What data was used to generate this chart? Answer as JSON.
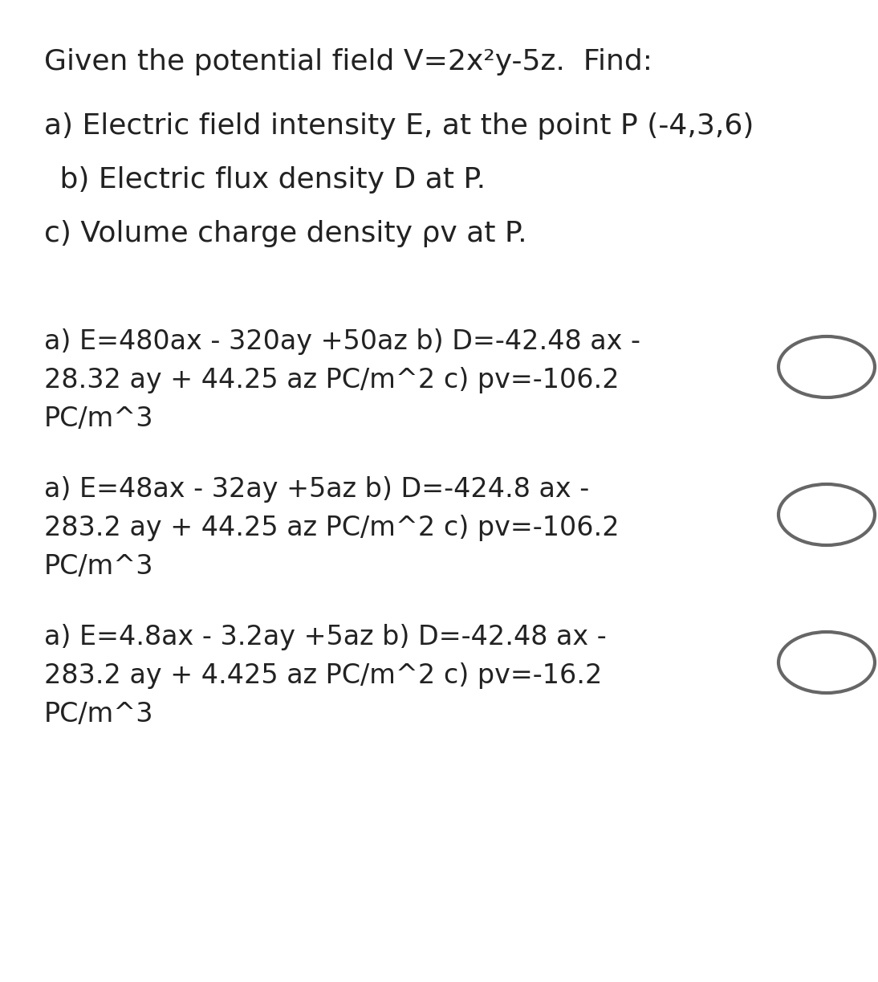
{
  "bg_color": "#ffffff",
  "title_line": "Given the potential field V=2x²y-5z.  Find:",
  "question_lines": [
    "a) Electric field intensity E, at the point P (-4,3,6)",
    " b) Electric flux density D at P.",
    "c) Volume charge density ρv at P."
  ],
  "options": [
    {
      "text_lines": [
        "a) E=480ax - 320ay +50az b) D=-42.48 ax -",
        "28.32 ay + 44.25 az PC/m^2 c) pv=-106.2",
        "PC/m^3"
      ]
    },
    {
      "text_lines": [
        "a) E=48ax - 32ay +5az b) D=-424.8 ax -",
        "283.2 ay + 44.25 az PC/m^2 c) pv=-106.2",
        "PC/m^3"
      ]
    },
    {
      "text_lines": [
        "a) E=4.8ax - 3.2ay +5az b) D=-42.48 ax -",
        "283.2 ay + 4.425 az PC/m^2 c) pv=-16.2",
        "PC/m^3"
      ]
    }
  ],
  "font_size_title": 26,
  "font_size_question": 26,
  "font_size_option": 24,
  "text_color": "#222222",
  "circle_color": "#666666",
  "font_family": "DejaVu Sans"
}
